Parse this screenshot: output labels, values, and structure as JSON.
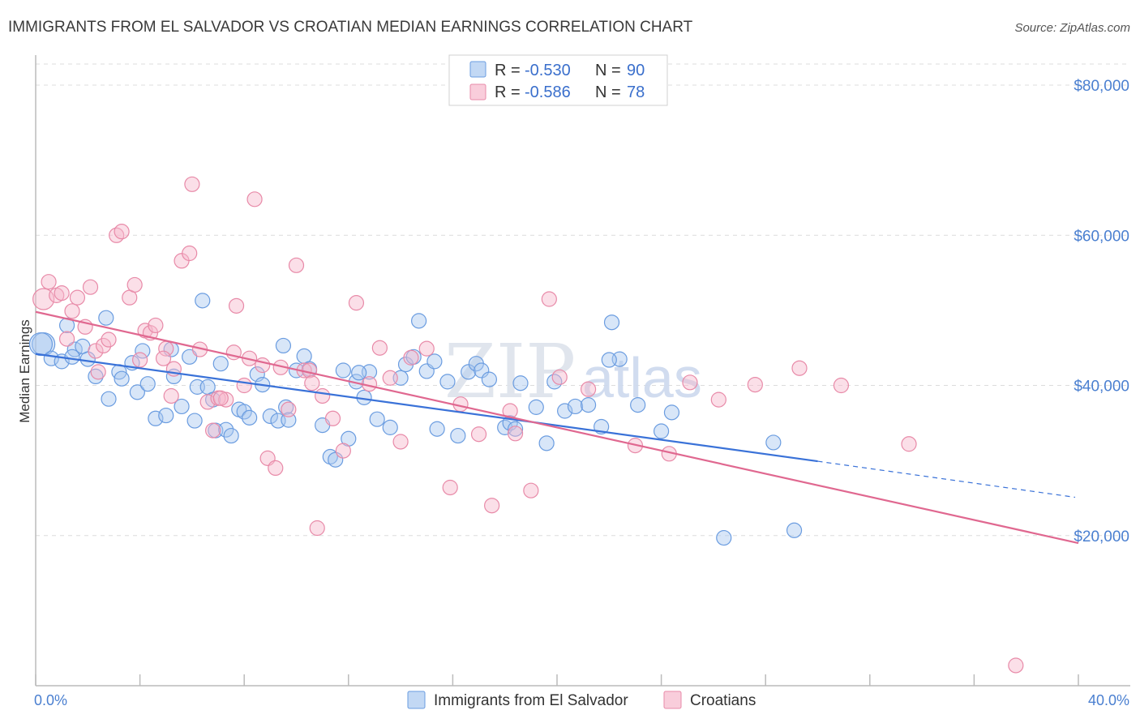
{
  "title": "IMMIGRANTS FROM EL SALVADOR VS CROATIAN MEDIAN EARNINGS CORRELATION CHART",
  "source": "Source: ZipAtlas.com",
  "watermark": {
    "zip": "ZIP",
    "atlas": "atlas"
  },
  "legend_top": [
    {
      "r_label": "R = ",
      "r_value": "-0.530",
      "n_label": "N = ",
      "n_value": "90"
    },
    {
      "r_label": "R = ",
      "r_value": "-0.586",
      "n_label": "N = ",
      "n_value": "78"
    }
  ],
  "legend_bottom": [
    {
      "label": "Immigrants from El Salvador"
    },
    {
      "label": "Croatians"
    }
  ],
  "colors": {
    "blue_fill": "#a8c8f0",
    "blue_stroke": "#6a9ce0",
    "blue_line": "#3a72d8",
    "pink_fill": "#f6b8cc",
    "pink_stroke": "#e88aa8",
    "pink_line": "#e06890",
    "grid": "#dcdcdc",
    "tick_text": "#4a7fd0"
  },
  "chart_data": {
    "type": "scatter",
    "title": "IMMIGRANTS FROM EL SALVADOR VS CROATIAN MEDIAN EARNINGS CORRELATION CHART",
    "xlabel": "",
    "ylabel": "Median Earnings",
    "xlim": [
      0,
      40
    ],
    "ylim": [
      0,
      84000
    ],
    "x_tick_labels": [
      "0.0%",
      "40.0%"
    ],
    "y_ticks": [
      20000,
      40000,
      60000,
      80000
    ],
    "y_tick_labels": [
      "$20,000",
      "$40,000",
      "$60,000",
      "$80,000"
    ],
    "grid": true,
    "legend": "top-center",
    "series": [
      {
        "name": "Immigrants from El Salvador",
        "trend": {
          "x0": 0,
          "y0": 44200,
          "x1": 30,
          "y1": 29900,
          "dashed_to_x": 40,
          "dashed_to_y": 25100
        },
        "points": [
          [
            0.3,
            45500
          ],
          [
            0.6,
            43600
          ],
          [
            1.0,
            43200
          ],
          [
            1.2,
            48000
          ],
          [
            1.5,
            44800
          ],
          [
            1.8,
            45200
          ],
          [
            2.0,
            43500
          ],
          [
            2.3,
            41200
          ],
          [
            2.7,
            49000
          ],
          [
            2.8,
            38200
          ],
          [
            3.2,
            41800
          ],
          [
            3.3,
            40900
          ],
          [
            3.7,
            43000
          ],
          [
            3.9,
            39100
          ],
          [
            4.1,
            44600
          ],
          [
            4.3,
            40200
          ],
          [
            4.6,
            35600
          ],
          [
            5.0,
            36000
          ],
          [
            5.2,
            44800
          ],
          [
            5.3,
            41200
          ],
          [
            5.6,
            37200
          ],
          [
            5.9,
            43800
          ],
          [
            6.1,
            35300
          ],
          [
            6.2,
            39800
          ],
          [
            6.4,
            51300
          ],
          [
            6.6,
            39800
          ],
          [
            6.9,
            34000
          ],
          [
            7.1,
            42900
          ],
          [
            7.3,
            34100
          ],
          [
            7.5,
            33300
          ],
          [
            7.8,
            36800
          ],
          [
            8.0,
            36500
          ],
          [
            8.2,
            35700
          ],
          [
            8.5,
            41500
          ],
          [
            8.7,
            40100
          ],
          [
            9.0,
            35900
          ],
          [
            9.3,
            35300
          ],
          [
            9.5,
            45300
          ],
          [
            9.6,
            37100
          ],
          [
            10.0,
            42000
          ],
          [
            10.3,
            43900
          ],
          [
            10.5,
            42200
          ],
          [
            11.0,
            34700
          ],
          [
            11.3,
            30500
          ],
          [
            11.5,
            30100
          ],
          [
            11.8,
            42000
          ],
          [
            12.0,
            32900
          ],
          [
            12.3,
            40500
          ],
          [
            12.6,
            38400
          ],
          [
            12.8,
            41800
          ],
          [
            13.1,
            35500
          ],
          [
            13.6,
            34400
          ],
          [
            14.0,
            41000
          ],
          [
            14.2,
            42800
          ],
          [
            14.5,
            43800
          ],
          [
            14.7,
            48600
          ],
          [
            15.0,
            41900
          ],
          [
            15.3,
            43200
          ],
          [
            15.8,
            40500
          ],
          [
            16.2,
            33300
          ],
          [
            16.6,
            41800
          ],
          [
            16.9,
            42900
          ],
          [
            17.1,
            42000
          ],
          [
            17.4,
            40800
          ],
          [
            18.0,
            34400
          ],
          [
            18.2,
            35000
          ],
          [
            18.4,
            34200
          ],
          [
            18.6,
            40300
          ],
          [
            19.2,
            37100
          ],
          [
            19.6,
            32300
          ],
          [
            19.9,
            40500
          ],
          [
            20.3,
            36600
          ],
          [
            20.7,
            37200
          ],
          [
            21.2,
            37400
          ],
          [
            21.7,
            34500
          ],
          [
            22.1,
            48400
          ],
          [
            22.4,
            43500
          ],
          [
            23.1,
            37400
          ],
          [
            24.0,
            33900
          ],
          [
            24.4,
            36400
          ],
          [
            0.2,
            45500
          ],
          [
            1.4,
            43800
          ],
          [
            6.8,
            38100
          ],
          [
            9.7,
            35400
          ],
          [
            12.4,
            41700
          ],
          [
            15.4,
            34200
          ],
          [
            22.0,
            43400
          ],
          [
            26.4,
            19700
          ],
          [
            28.3,
            32400
          ],
          [
            29.1,
            20700
          ]
        ]
      },
      {
        "name": "Croatians",
        "trend": {
          "x0": 0,
          "y0": 49800,
          "x1": 40,
          "y1": 19000
        },
        "points": [
          [
            0.3,
            51500
          ],
          [
            0.5,
            53800
          ],
          [
            0.8,
            52000
          ],
          [
            1.0,
            52300
          ],
          [
            1.2,
            46200
          ],
          [
            1.4,
            49900
          ],
          [
            1.6,
            51700
          ],
          [
            1.9,
            47800
          ],
          [
            2.1,
            53100
          ],
          [
            2.3,
            44600
          ],
          [
            2.6,
            45300
          ],
          [
            2.8,
            46100
          ],
          [
            3.1,
            60000
          ],
          [
            3.3,
            60500
          ],
          [
            3.6,
            51700
          ],
          [
            3.8,
            53400
          ],
          [
            4.0,
            43400
          ],
          [
            4.2,
            47300
          ],
          [
            4.4,
            47000
          ],
          [
            4.6,
            48000
          ],
          [
            5.0,
            44900
          ],
          [
            5.2,
            38600
          ],
          [
            5.3,
            42200
          ],
          [
            5.6,
            56600
          ],
          [
            5.9,
            57600
          ],
          [
            6.0,
            66800
          ],
          [
            6.3,
            44800
          ],
          [
            6.6,
            37800
          ],
          [
            6.8,
            34000
          ],
          [
            7.0,
            38300
          ],
          [
            7.3,
            38100
          ],
          [
            7.6,
            44400
          ],
          [
            7.7,
            50600
          ],
          [
            8.0,
            40000
          ],
          [
            8.2,
            43600
          ],
          [
            8.4,
            64800
          ],
          [
            8.7,
            42700
          ],
          [
            8.9,
            30300
          ],
          [
            9.2,
            29000
          ],
          [
            9.4,
            42400
          ],
          [
            9.7,
            36800
          ],
          [
            10.0,
            56000
          ],
          [
            10.3,
            42000
          ],
          [
            10.5,
            42000
          ],
          [
            10.8,
            21000
          ],
          [
            11.0,
            38600
          ],
          [
            11.4,
            35600
          ],
          [
            11.8,
            31300
          ],
          [
            12.3,
            51000
          ],
          [
            12.8,
            40200
          ],
          [
            13.2,
            45000
          ],
          [
            13.6,
            41000
          ],
          [
            14.0,
            32500
          ],
          [
            14.4,
            43700
          ],
          [
            15.0,
            44900
          ],
          [
            15.9,
            26400
          ],
          [
            16.3,
            37500
          ],
          [
            17.0,
            33500
          ],
          [
            17.5,
            24000
          ],
          [
            18.4,
            33600
          ],
          [
            19.0,
            26000
          ],
          [
            19.7,
            51500
          ],
          [
            20.1,
            41100
          ],
          [
            21.2,
            39500
          ],
          [
            23.0,
            32000
          ],
          [
            24.3,
            30900
          ],
          [
            25.1,
            40400
          ],
          [
            26.2,
            38100
          ],
          [
            27.6,
            40100
          ],
          [
            29.3,
            42300
          ],
          [
            30.9,
            40000
          ],
          [
            2.4,
            41800
          ],
          [
            4.9,
            43600
          ],
          [
            7.1,
            38300
          ],
          [
            10.6,
            40300
          ],
          [
            18.2,
            36600
          ],
          [
            33.5,
            32200
          ],
          [
            37.6,
            2700
          ]
        ]
      }
    ]
  }
}
